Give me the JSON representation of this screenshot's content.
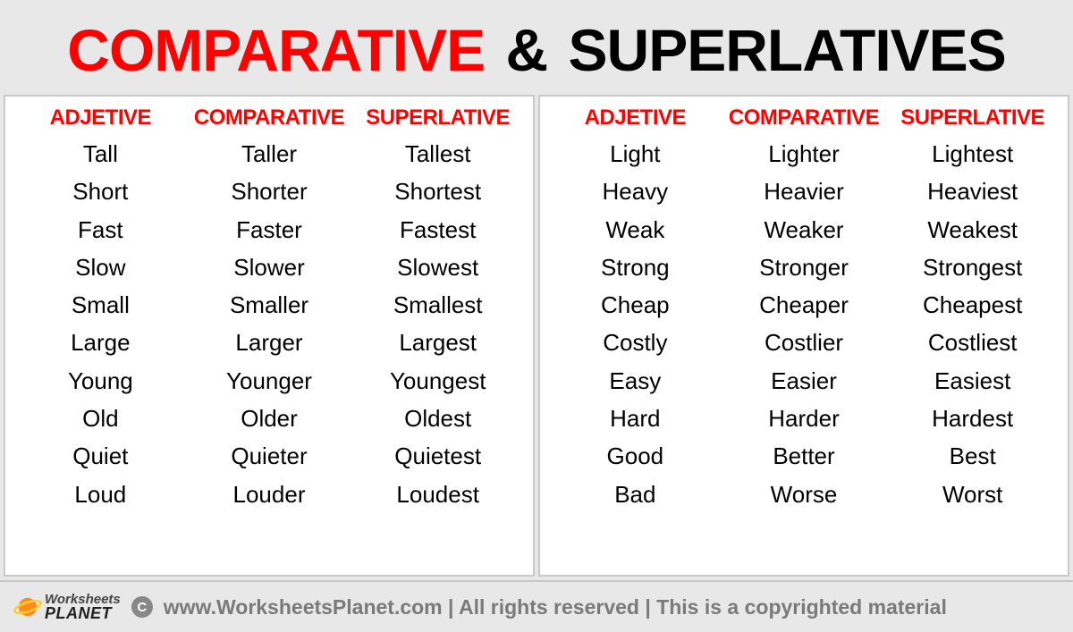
{
  "title": {
    "word1": "COMPARATIVE",
    "amp": "&",
    "word2": "SUPERLATIVES"
  },
  "colors": {
    "accent": "#ff0000",
    "text": "#000000",
    "page_bg": "#e8e8e8",
    "panel_bg": "#ffffff",
    "border": "#c8c8c8",
    "footer_text": "#7a7a7a"
  },
  "headers": {
    "col1": "ADJETIVE",
    "col2": "COMPARATIVE",
    "col3": "SUPERLATIVE"
  },
  "left_table": [
    {
      "adj": "Tall",
      "comp": "Taller",
      "sup": "Tallest"
    },
    {
      "adj": "Short",
      "comp": "Shorter",
      "sup": "Shortest"
    },
    {
      "adj": "Fast",
      "comp": "Faster",
      "sup": "Fastest"
    },
    {
      "adj": "Slow",
      "comp": "Slower",
      "sup": "Slowest"
    },
    {
      "adj": "Small",
      "comp": "Smaller",
      "sup": "Smallest"
    },
    {
      "adj": "Large",
      "comp": "Larger",
      "sup": "Largest"
    },
    {
      "adj": "Young",
      "comp": "Younger",
      "sup": "Youngest"
    },
    {
      "adj": "Old",
      "comp": "Older",
      "sup": "Oldest"
    },
    {
      "adj": "Quiet",
      "comp": "Quieter",
      "sup": "Quietest"
    },
    {
      "adj": "Loud",
      "comp": "Louder",
      "sup": "Loudest"
    }
  ],
  "right_table": [
    {
      "adj": "Light",
      "comp": "Lighter",
      "sup": "Lightest"
    },
    {
      "adj": "Heavy",
      "comp": "Heavier",
      "sup": "Heaviest"
    },
    {
      "adj": "Weak",
      "comp": "Weaker",
      "sup": "Weakest"
    },
    {
      "adj": "Strong",
      "comp": "Stronger",
      "sup": "Strongest"
    },
    {
      "adj": "Cheap",
      "comp": "Cheaper",
      "sup": "Cheapest"
    },
    {
      "adj": "Costly",
      "comp": "Costlier",
      "sup": "Costliest"
    },
    {
      "adj": "Easy",
      "comp": "Easier",
      "sup": "Easiest"
    },
    {
      "adj": "Hard",
      "comp": "Harder",
      "sup": "Hardest"
    },
    {
      "adj": "Good",
      "comp": "Better",
      "sup": "Best"
    },
    {
      "adj": "Bad",
      "comp": "Worse",
      "sup": "Worst"
    }
  ],
  "footer": {
    "logo_line1": "Worksheets",
    "logo_line2": "PLANET",
    "copyright_symbol": "C",
    "text": "www.WorksheetsPlanet.com | All rights reserved | This is a copyrighted material"
  }
}
